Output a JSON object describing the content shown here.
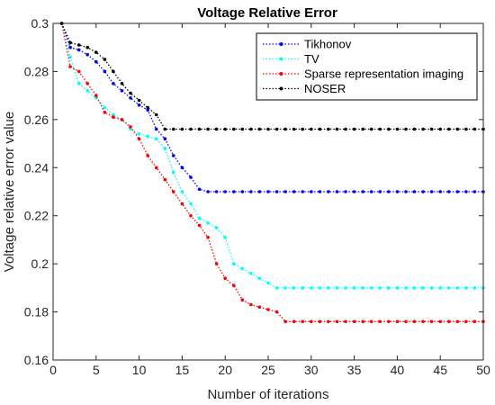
{
  "chart_data": {
    "type": "line",
    "title": "Voltage Relative Error",
    "xlabel": "Number of iterations",
    "ylabel": "Voltage relative error value",
    "xlim": [
      0,
      50
    ],
    "ylim": [
      0.16,
      0.3
    ],
    "xticks": [
      0,
      5,
      10,
      15,
      20,
      25,
      30,
      35,
      40,
      45,
      50
    ],
    "yticks": [
      0.16,
      0.18,
      0.2,
      0.22,
      0.24,
      0.26,
      0.28,
      0.3
    ],
    "xtick_labels": [
      "0",
      "5",
      "10",
      "15",
      "20",
      "25",
      "30",
      "35",
      "40",
      "45",
      "50"
    ],
    "ytick_labels": [
      "0.16",
      "0.18",
      "0.2",
      "0.22",
      "0.24",
      "0.26",
      "0.28",
      "0.3"
    ],
    "grid": false,
    "legend_position": "top-right",
    "line_style": "dotted with point markers",
    "series": [
      {
        "name": "Tikhonov",
        "color": "#0000ff",
        "x": [
          1,
          2,
          3,
          4,
          5,
          6,
          7,
          8,
          9,
          10,
          11,
          12,
          13,
          14,
          15,
          16,
          17,
          18,
          19,
          20,
          21,
          22,
          23,
          24,
          25,
          26,
          27,
          28,
          29,
          30,
          31,
          32,
          33,
          34,
          35,
          36,
          37,
          38,
          39,
          40,
          41,
          42,
          43,
          44,
          45,
          46,
          47,
          48,
          49,
          50
        ],
        "y": [
          0.3,
          0.29,
          0.289,
          0.287,
          0.284,
          0.28,
          0.275,
          0.272,
          0.269,
          0.266,
          0.264,
          0.256,
          0.252,
          0.245,
          0.24,
          0.236,
          0.231,
          0.23,
          0.23,
          0.23,
          0.23,
          0.23,
          0.23,
          0.23,
          0.23,
          0.23,
          0.23,
          0.23,
          0.23,
          0.23,
          0.23,
          0.23,
          0.23,
          0.23,
          0.23,
          0.23,
          0.23,
          0.23,
          0.23,
          0.23,
          0.23,
          0.23,
          0.23,
          0.23,
          0.23,
          0.23,
          0.23,
          0.23,
          0.23,
          0.23
        ]
      },
      {
        "name": "TV",
        "color": "#00ffff",
        "x": [
          1,
          2,
          3,
          4,
          5,
          6,
          7,
          8,
          9,
          10,
          11,
          12,
          13,
          14,
          15,
          16,
          17,
          18,
          19,
          20,
          21,
          22,
          23,
          24,
          25,
          26,
          27,
          28,
          29,
          30,
          31,
          32,
          33,
          34,
          35,
          36,
          37,
          38,
          39,
          40,
          41,
          42,
          43,
          44,
          45,
          46,
          47,
          48,
          49,
          50
        ],
        "y": [
          0.3,
          0.286,
          0.275,
          0.272,
          0.269,
          0.265,
          0.262,
          0.26,
          0.256,
          0.254,
          0.253,
          0.252,
          0.248,
          0.238,
          0.23,
          0.225,
          0.219,
          0.217,
          0.215,
          0.211,
          0.2,
          0.198,
          0.196,
          0.194,
          0.192,
          0.19,
          0.19,
          0.19,
          0.19,
          0.19,
          0.19,
          0.19,
          0.19,
          0.19,
          0.19,
          0.19,
          0.19,
          0.19,
          0.19,
          0.19,
          0.19,
          0.19,
          0.19,
          0.19,
          0.19,
          0.19,
          0.19,
          0.19,
          0.19,
          0.19
        ]
      },
      {
        "name": "Sparse representation imaging",
        "color": "#ff0000",
        "x": [
          1,
          2,
          3,
          4,
          5,
          6,
          7,
          8,
          9,
          10,
          11,
          12,
          13,
          14,
          15,
          16,
          17,
          18,
          19,
          20,
          21,
          22,
          23,
          24,
          25,
          26,
          27,
          28,
          29,
          30,
          31,
          32,
          33,
          34,
          35,
          36,
          37,
          38,
          39,
          40,
          41,
          42,
          43,
          44,
          45,
          46,
          47,
          48,
          49,
          50
        ],
        "y": [
          0.3,
          0.282,
          0.28,
          0.275,
          0.27,
          0.263,
          0.261,
          0.26,
          0.257,
          0.252,
          0.245,
          0.24,
          0.235,
          0.23,
          0.225,
          0.22,
          0.216,
          0.211,
          0.2,
          0.194,
          0.191,
          0.185,
          0.183,
          0.182,
          0.181,
          0.18,
          0.176,
          0.176,
          0.176,
          0.176,
          0.176,
          0.176,
          0.176,
          0.176,
          0.176,
          0.176,
          0.176,
          0.176,
          0.176,
          0.176,
          0.176,
          0.176,
          0.176,
          0.176,
          0.176,
          0.176,
          0.176,
          0.176,
          0.176,
          0.176
        ]
      },
      {
        "name": "NOSER",
        "color": "#000000",
        "x": [
          1,
          2,
          3,
          4,
          5,
          6,
          7,
          8,
          9,
          10,
          11,
          12,
          13,
          14,
          15,
          16,
          17,
          18,
          19,
          20,
          21,
          22,
          23,
          24,
          25,
          26,
          27,
          28,
          29,
          30,
          31,
          32,
          33,
          34,
          35,
          36,
          37,
          38,
          39,
          40,
          41,
          42,
          43,
          44,
          45,
          46,
          47,
          48,
          49,
          50
        ],
        "y": [
          0.3,
          0.292,
          0.291,
          0.29,
          0.288,
          0.285,
          0.28,
          0.275,
          0.271,
          0.268,
          0.265,
          0.262,
          0.256,
          0.256,
          0.256,
          0.256,
          0.256,
          0.256,
          0.256,
          0.256,
          0.256,
          0.256,
          0.256,
          0.256,
          0.256,
          0.256,
          0.256,
          0.256,
          0.256,
          0.256,
          0.256,
          0.256,
          0.256,
          0.256,
          0.256,
          0.256,
          0.256,
          0.256,
          0.256,
          0.256,
          0.256,
          0.256,
          0.256,
          0.256,
          0.256,
          0.256,
          0.256,
          0.256,
          0.256,
          0.256
        ]
      }
    ]
  }
}
